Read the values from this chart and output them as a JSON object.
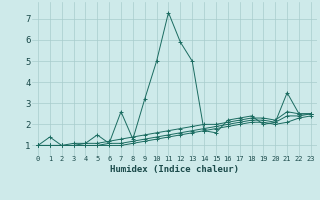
{
  "xlabel": "Humidex (Indice chaleur)",
  "background_color": "#ceeaea",
  "grid_color": "#a8cccc",
  "line_color": "#1a6b60",
  "xlim": [
    -0.5,
    23.5
  ],
  "ylim": [
    0.5,
    7.8
  ],
  "xtick_labels": [
    "0",
    "1",
    "2",
    "3",
    "4",
    "5",
    "6",
    "7",
    "8",
    "9",
    "10",
    "11",
    "12",
    "13",
    "14",
    "15",
    "16",
    "17",
    "18",
    "19",
    "20",
    "21",
    "22",
    "23"
  ],
  "ytick_labels": [
    "1",
    "2",
    "3",
    "4",
    "5",
    "6",
    "7"
  ],
  "series": [
    {
      "x": [
        0,
        1,
        2,
        3,
        4,
        5,
        6,
        7,
        8,
        9,
        10,
        11,
        12,
        13,
        14,
        15,
        16,
        17,
        18,
        19,
        20,
        21,
        22,
        23
      ],
      "y": [
        1.0,
        1.4,
        1.0,
        1.1,
        1.1,
        1.5,
        1.1,
        2.6,
        1.3,
        3.2,
        5.0,
        7.3,
        5.9,
        5.0,
        1.7,
        1.6,
        2.2,
        2.3,
        2.4,
        2.0,
        2.1,
        3.5,
        2.5,
        2.5
      ]
    },
    {
      "x": [
        0,
        1,
        2,
        3,
        4,
        5,
        6,
        7,
        8,
        9,
        10,
        11,
        12,
        13,
        14,
        15,
        16,
        17,
        18,
        19,
        20,
        21,
        22,
        23
      ],
      "y": [
        1.0,
        1.0,
        1.0,
        1.0,
        1.1,
        1.1,
        1.2,
        1.3,
        1.4,
        1.5,
        1.6,
        1.7,
        1.8,
        1.9,
        2.0,
        2.0,
        2.1,
        2.2,
        2.3,
        2.3,
        2.2,
        2.6,
        2.5,
        2.5
      ]
    },
    {
      "x": [
        0,
        1,
        2,
        3,
        4,
        5,
        6,
        7,
        8,
        9,
        10,
        11,
        12,
        13,
        14,
        15,
        16,
        17,
        18,
        19,
        20,
        21,
        22,
        23
      ],
      "y": [
        1.0,
        1.0,
        1.0,
        1.0,
        1.0,
        1.0,
        1.1,
        1.1,
        1.2,
        1.3,
        1.4,
        1.5,
        1.6,
        1.7,
        1.8,
        1.9,
        2.0,
        2.1,
        2.2,
        2.2,
        2.1,
        2.4,
        2.4,
        2.5
      ]
    },
    {
      "x": [
        0,
        1,
        2,
        3,
        4,
        5,
        6,
        7,
        8,
        9,
        10,
        11,
        12,
        13,
        14,
        15,
        16,
        17,
        18,
        19,
        20,
        21,
        22,
        23
      ],
      "y": [
        1.0,
        1.0,
        1.0,
        1.0,
        1.0,
        1.0,
        1.0,
        1.0,
        1.1,
        1.2,
        1.3,
        1.4,
        1.5,
        1.6,
        1.7,
        1.8,
        1.9,
        2.0,
        2.1,
        2.1,
        2.0,
        2.1,
        2.3,
        2.4
      ]
    }
  ]
}
